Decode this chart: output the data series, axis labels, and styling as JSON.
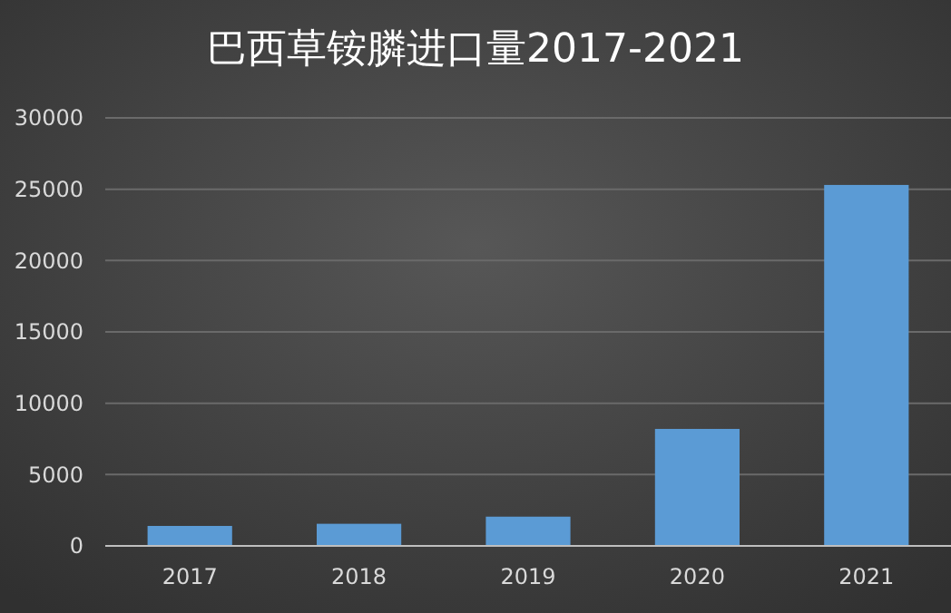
{
  "chart_data": {
    "type": "bar",
    "title": "巴西草铵膦进口量2017-2021",
    "categories": [
      "2017",
      "2018",
      "2019",
      "2020",
      "2021"
    ],
    "values": [
      1400,
      1550,
      2050,
      8200,
      25300
    ],
    "color": "#5b9bd5",
    "ylim": [
      0,
      30000
    ],
    "yticks": [
      0,
      5000,
      10000,
      15000,
      20000,
      25000,
      30000
    ],
    "grid": "y"
  }
}
